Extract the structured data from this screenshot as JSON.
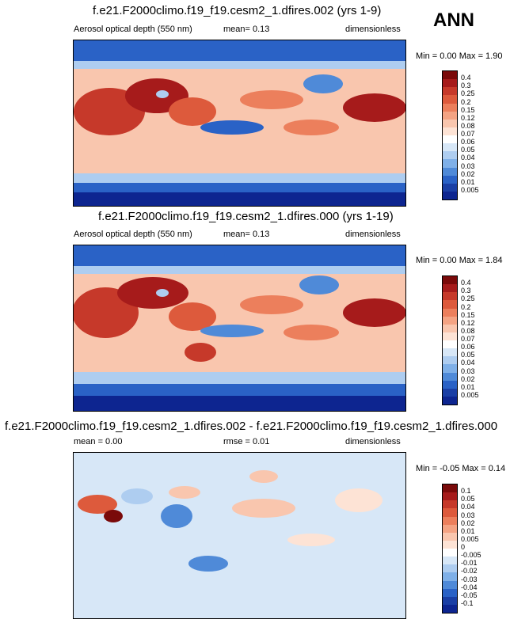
{
  "season": "ANN",
  "panels": [
    {
      "title": "f.e21.F2000climo.f19_f19.cesm2_1.dfires.002 (yrs 1-9)",
      "variable": "Aerosol optical depth (550 nm)",
      "stat1": "mean=  0.13",
      "units": "dimensionless",
      "minmax": "Min =  0.00 Max =  1.90",
      "levels": [
        "0.4",
        "0.3",
        "0.25",
        "0.2",
        "0.15",
        "0.12",
        "0.08",
        "0.07",
        "0.06",
        "0.05",
        "0.04",
        "0.03",
        "0.02",
        "0.01",
        "0.005"
      ]
    },
    {
      "title": "f.e21.F2000climo.f19_f19.cesm2_1.dfires.000 (yrs 1-19)",
      "variable": "Aerosol optical depth (550 nm)",
      "stat1": "mean=  0.13",
      "units": "dimensionless",
      "minmax": "Min =  0.00 Max =  1.84",
      "levels": [
        "0.4",
        "0.3",
        "0.25",
        "0.2",
        "0.15",
        "0.12",
        "0.08",
        "0.07",
        "0.06",
        "0.05",
        "0.04",
        "0.03",
        "0.02",
        "0.01",
        "0.005"
      ]
    },
    {
      "title": "f.e21.F2000climo.f19_f19.cesm2_1.dfires.002 - f.e21.F2000climo.f19_f19.cesm2_1.dfires.000",
      "stat1": "mean =   0.00",
      "stat2": "rmse =   0.01",
      "units": "dimensionless",
      "minmax": "Min = -0.05 Max =  0.14",
      "levels": [
        "0.1",
        "0.05",
        "0.04",
        "0.03",
        "0.02",
        "0.01",
        "0.005",
        "0",
        "-0.005",
        "-0.01",
        "-0.02",
        "-0.03",
        "-0.04",
        "-0.05",
        "-0.1"
      ]
    }
  ],
  "colors": {
    "field_scale": [
      "#7a0a0a",
      "#a61b1b",
      "#c6392a",
      "#dd5a3c",
      "#ec7f5c",
      "#f4a383",
      "#f9c6ae",
      "#fde3d5",
      "#ffffff",
      "#d7e7f7",
      "#aecdf0",
      "#7fb0e8",
      "#4f8ad8",
      "#2a62c6",
      "#1a3fa5",
      "#0d2590"
    ],
    "land_outline": "#000000"
  }
}
